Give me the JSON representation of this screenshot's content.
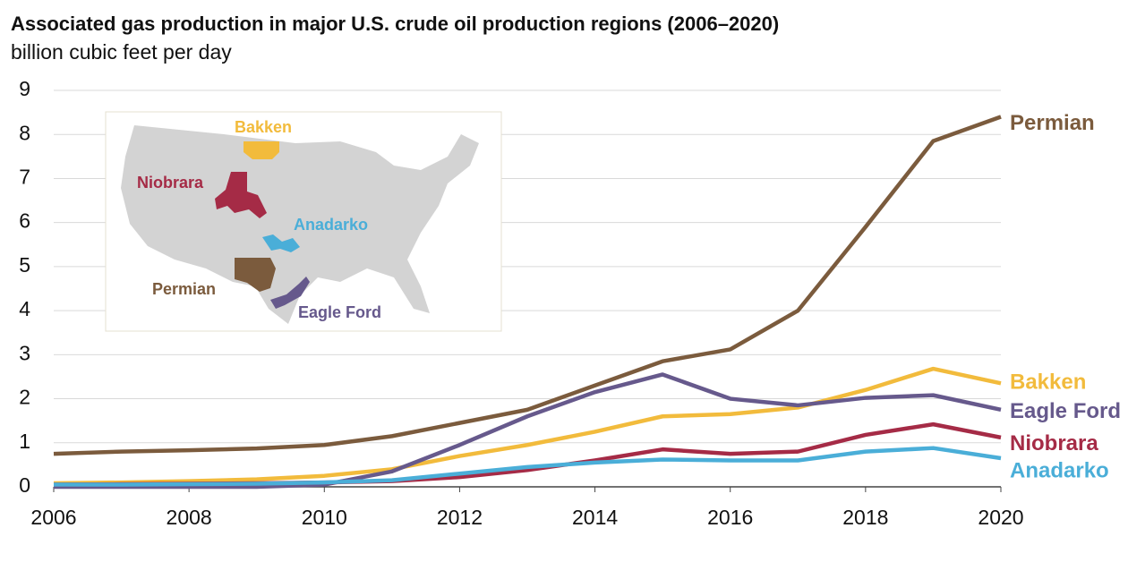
{
  "chart_data": {
    "type": "line",
    "title": "Associated gas production in major U.S. crude oil production regions (2006–2020)",
    "subtitle": "billion cubic feet per day",
    "x": [
      2006,
      2007,
      2008,
      2009,
      2010,
      2011,
      2012,
      2013,
      2014,
      2015,
      2016,
      2017,
      2018,
      2019,
      2020
    ],
    "xlim": [
      2006,
      2020
    ],
    "xticks": [
      2006,
      2008,
      2010,
      2012,
      2014,
      2016,
      2018,
      2020
    ],
    "ylim": [
      0,
      9
    ],
    "yticks": [
      0,
      1,
      2,
      3,
      4,
      5,
      6,
      7,
      8,
      9
    ],
    "grid": true,
    "series": [
      {
        "name": "Permian",
        "color": "#7b5b3d",
        "values": [
          0.75,
          0.8,
          0.83,
          0.87,
          0.95,
          1.15,
          1.45,
          1.75,
          2.3,
          2.85,
          3.12,
          4.0,
          5.9,
          7.85,
          8.4
        ]
      },
      {
        "name": "Bakken",
        "color": "#f2bb3c",
        "values": [
          0.08,
          0.1,
          0.13,
          0.17,
          0.25,
          0.4,
          0.7,
          0.95,
          1.25,
          1.6,
          1.65,
          1.8,
          2.2,
          2.68,
          2.35
        ]
      },
      {
        "name": "Eagle Ford",
        "color": "#66598c",
        "values": [
          0,
          0,
          0,
          0,
          0.05,
          0.35,
          0.95,
          1.6,
          2.15,
          2.55,
          2.0,
          1.85,
          2.02,
          2.08,
          1.75
        ]
      },
      {
        "name": "Niobrara",
        "color": "#a52b46",
        "values": [
          0.05,
          0.06,
          0.07,
          0.08,
          0.1,
          0.13,
          0.22,
          0.38,
          0.6,
          0.85,
          0.75,
          0.8,
          1.18,
          1.42,
          1.12
        ]
      },
      {
        "name": "Anadarko",
        "color": "#4aaed8",
        "values": [
          0.05,
          0.05,
          0.06,
          0.07,
          0.1,
          0.15,
          0.3,
          0.45,
          0.55,
          0.62,
          0.6,
          0.6,
          0.8,
          0.88,
          0.65
        ]
      }
    ]
  }
}
